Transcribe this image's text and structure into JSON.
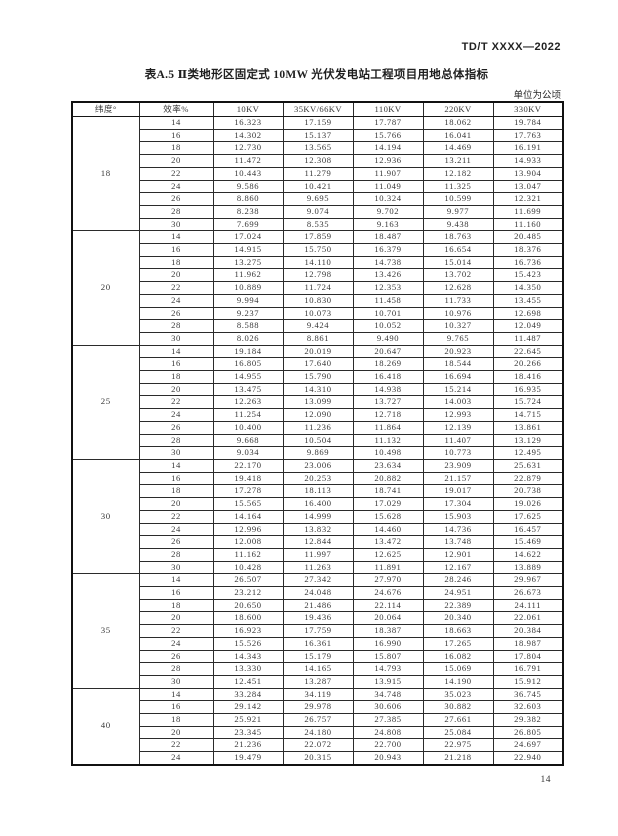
{
  "page": {
    "doc_code": "TD/T XXXX—2022",
    "title": "表A.5  Ⅱ类地形区固定式 10MW 光伏发电站工程项目用地总体指标",
    "unit_note": "单位为公顷",
    "page_number": "14"
  },
  "table": {
    "columns": [
      "纬度°",
      "效率%",
      "10KV",
      "35KV/66KV",
      "110KV",
      "220KV",
      "330KV"
    ],
    "groups": [
      {
        "latitude": "18",
        "rows": [
          {
            "efficiency": "14",
            "values": [
              "16.323",
              "17.159",
              "17.787",
              "18.062",
              "19.784"
            ]
          },
          {
            "efficiency": "16",
            "values": [
              "14.302",
              "15.137",
              "15.766",
              "16.041",
              "17.763"
            ]
          },
          {
            "efficiency": "18",
            "values": [
              "12.730",
              "13.565",
              "14.194",
              "14.469",
              "16.191"
            ]
          },
          {
            "efficiency": "20",
            "values": [
              "11.472",
              "12.308",
              "12.936",
              "13.211",
              "14.933"
            ]
          },
          {
            "efficiency": "22",
            "values": [
              "10.443",
              "11.279",
              "11.907",
              "12.182",
              "13.904"
            ]
          },
          {
            "efficiency": "24",
            "values": [
              "9.586",
              "10.421",
              "11.049",
              "11.325",
              "13.047"
            ]
          },
          {
            "efficiency": "26",
            "values": [
              "8.860",
              "9.695",
              "10.324",
              "10.599",
              "12.321"
            ]
          },
          {
            "efficiency": "28",
            "values": [
              "8.238",
              "9.074",
              "9.702",
              "9.977",
              "11.699"
            ]
          },
          {
            "efficiency": "30",
            "values": [
              "7.699",
              "8.535",
              "9.163",
              "9.438",
              "11.160"
            ]
          }
        ]
      },
      {
        "latitude": "20",
        "rows": [
          {
            "efficiency": "14",
            "values": [
              "17.024",
              "17.859",
              "18.487",
              "18.763",
              "20.485"
            ]
          },
          {
            "efficiency": "16",
            "values": [
              "14.915",
              "15.750",
              "16.379",
              "16.654",
              "18.376"
            ]
          },
          {
            "efficiency": "18",
            "values": [
              "13.275",
              "14.110",
              "14.738",
              "15.014",
              "16.736"
            ]
          },
          {
            "efficiency": "20",
            "values": [
              "11.962",
              "12.798",
              "13.426",
              "13.702",
              "15.423"
            ]
          },
          {
            "efficiency": "22",
            "values": [
              "10.889",
              "11.724",
              "12.353",
              "12.628",
              "14.350"
            ]
          },
          {
            "efficiency": "24",
            "values": [
              "9.994",
              "10.830",
              "11.458",
              "11.733",
              "13.455"
            ]
          },
          {
            "efficiency": "26",
            "values": [
              "9.237",
              "10.073",
              "10.701",
              "10.976",
              "12.698"
            ]
          },
          {
            "efficiency": "28",
            "values": [
              "8.588",
              "9.424",
              "10.052",
              "10.327",
              "12.049"
            ]
          },
          {
            "efficiency": "30",
            "values": [
              "8.026",
              "8.861",
              "9.490",
              "9.765",
              "11.487"
            ]
          }
        ]
      },
      {
        "latitude": "25",
        "rows": [
          {
            "efficiency": "14",
            "values": [
              "19.184",
              "20.019",
              "20.647",
              "20.923",
              "22.645"
            ]
          },
          {
            "efficiency": "16",
            "values": [
              "16.805",
              "17.640",
              "18.269",
              "18.544",
              "20.266"
            ]
          },
          {
            "efficiency": "18",
            "values": [
              "14.955",
              "15.790",
              "16.418",
              "16.694",
              "18.416"
            ]
          },
          {
            "efficiency": "20",
            "values": [
              "13.475",
              "14.310",
              "14.938",
              "15.214",
              "16.935"
            ]
          },
          {
            "efficiency": "22",
            "values": [
              "12.263",
              "13.099",
              "13.727",
              "14.003",
              "15.724"
            ]
          },
          {
            "efficiency": "24",
            "values": [
              "11.254",
              "12.090",
              "12.718",
              "12.993",
              "14.715"
            ]
          },
          {
            "efficiency": "26",
            "values": [
              "10.400",
              "11.236",
              "11.864",
              "12.139",
              "13.861"
            ]
          },
          {
            "efficiency": "28",
            "values": [
              "9.668",
              "10.504",
              "11.132",
              "11.407",
              "13.129"
            ]
          },
          {
            "efficiency": "30",
            "values": [
              "9.034",
              "9.869",
              "10.498",
              "10.773",
              "12.495"
            ]
          }
        ]
      },
      {
        "latitude": "30",
        "rows": [
          {
            "efficiency": "14",
            "values": [
              "22.170",
              "23.006",
              "23.634",
              "23.909",
              "25.631"
            ]
          },
          {
            "efficiency": "16",
            "values": [
              "19.418",
              "20.253",
              "20.882",
              "21.157",
              "22.879"
            ]
          },
          {
            "efficiency": "18",
            "values": [
              "17.278",
              "18.113",
              "18.741",
              "19.017",
              "20.738"
            ]
          },
          {
            "efficiency": "20",
            "values": [
              "15.565",
              "16.400",
              "17.029",
              "17.304",
              "19.026"
            ]
          },
          {
            "efficiency": "22",
            "values": [
              "14.164",
              "14.999",
              "15.628",
              "15.903",
              "17.625"
            ]
          },
          {
            "efficiency": "24",
            "values": [
              "12.996",
              "13.832",
              "14.460",
              "14.736",
              "16.457"
            ]
          },
          {
            "efficiency": "26",
            "values": [
              "12.008",
              "12.844",
              "13.472",
              "13.748",
              "15.469"
            ]
          },
          {
            "efficiency": "28",
            "values": [
              "11.162",
              "11.997",
              "12.625",
              "12.901",
              "14.622"
            ]
          },
          {
            "efficiency": "30",
            "values": [
              "10.428",
              "11.263",
              "11.891",
              "12.167",
              "13.889"
            ]
          }
        ]
      },
      {
        "latitude": "35",
        "rows": [
          {
            "efficiency": "14",
            "values": [
              "26.507",
              "27.342",
              "27.970",
              "28.246",
              "29.967"
            ]
          },
          {
            "efficiency": "16",
            "values": [
              "23.212",
              "24.048",
              "24.676",
              "24.951",
              "26.673"
            ]
          },
          {
            "efficiency": "18",
            "values": [
              "20.650",
              "21.486",
              "22.114",
              "22.389",
              "24.111"
            ]
          },
          {
            "efficiency": "20",
            "values": [
              "18.600",
              "19.436",
              "20.064",
              "20.340",
              "22.061"
            ]
          },
          {
            "efficiency": "22",
            "values": [
              "16.923",
              "17.759",
              "18.387",
              "18.663",
              "20.384"
            ]
          },
          {
            "efficiency": "24",
            "values": [
              "15.526",
              "16.361",
              "16.990",
              "17.265",
              "18.987"
            ]
          },
          {
            "efficiency": "26",
            "values": [
              "14.343",
              "15.179",
              "15.807",
              "16.082",
              "17.804"
            ]
          },
          {
            "efficiency": "28",
            "values": [
              "13.330",
              "14.165",
              "14.793",
              "15.069",
              "16.791"
            ]
          },
          {
            "efficiency": "30",
            "values": [
              "12.451",
              "13.287",
              "13.915",
              "14.190",
              "15.912"
            ]
          }
        ]
      },
      {
        "latitude": "40",
        "rows": [
          {
            "efficiency": "14",
            "values": [
              "33.284",
              "34.119",
              "34.748",
              "35.023",
              "36.745"
            ]
          },
          {
            "efficiency": "16",
            "values": [
              "29.142",
              "29.978",
              "30.606",
              "30.882",
              "32.603"
            ]
          },
          {
            "efficiency": "18",
            "values": [
              "25.921",
              "26.757",
              "27.385",
              "27.661",
              "29.382"
            ]
          },
          {
            "efficiency": "20",
            "values": [
              "23.345",
              "24.180",
              "24.808",
              "25.084",
              "26.805"
            ]
          },
          {
            "efficiency": "22",
            "values": [
              "21.236",
              "22.072",
              "22.700",
              "22.975",
              "24.697"
            ]
          },
          {
            "efficiency": "24",
            "values": [
              "19.479",
              "20.315",
              "20.943",
              "21.218",
              "22.940"
            ]
          }
        ]
      }
    ]
  }
}
